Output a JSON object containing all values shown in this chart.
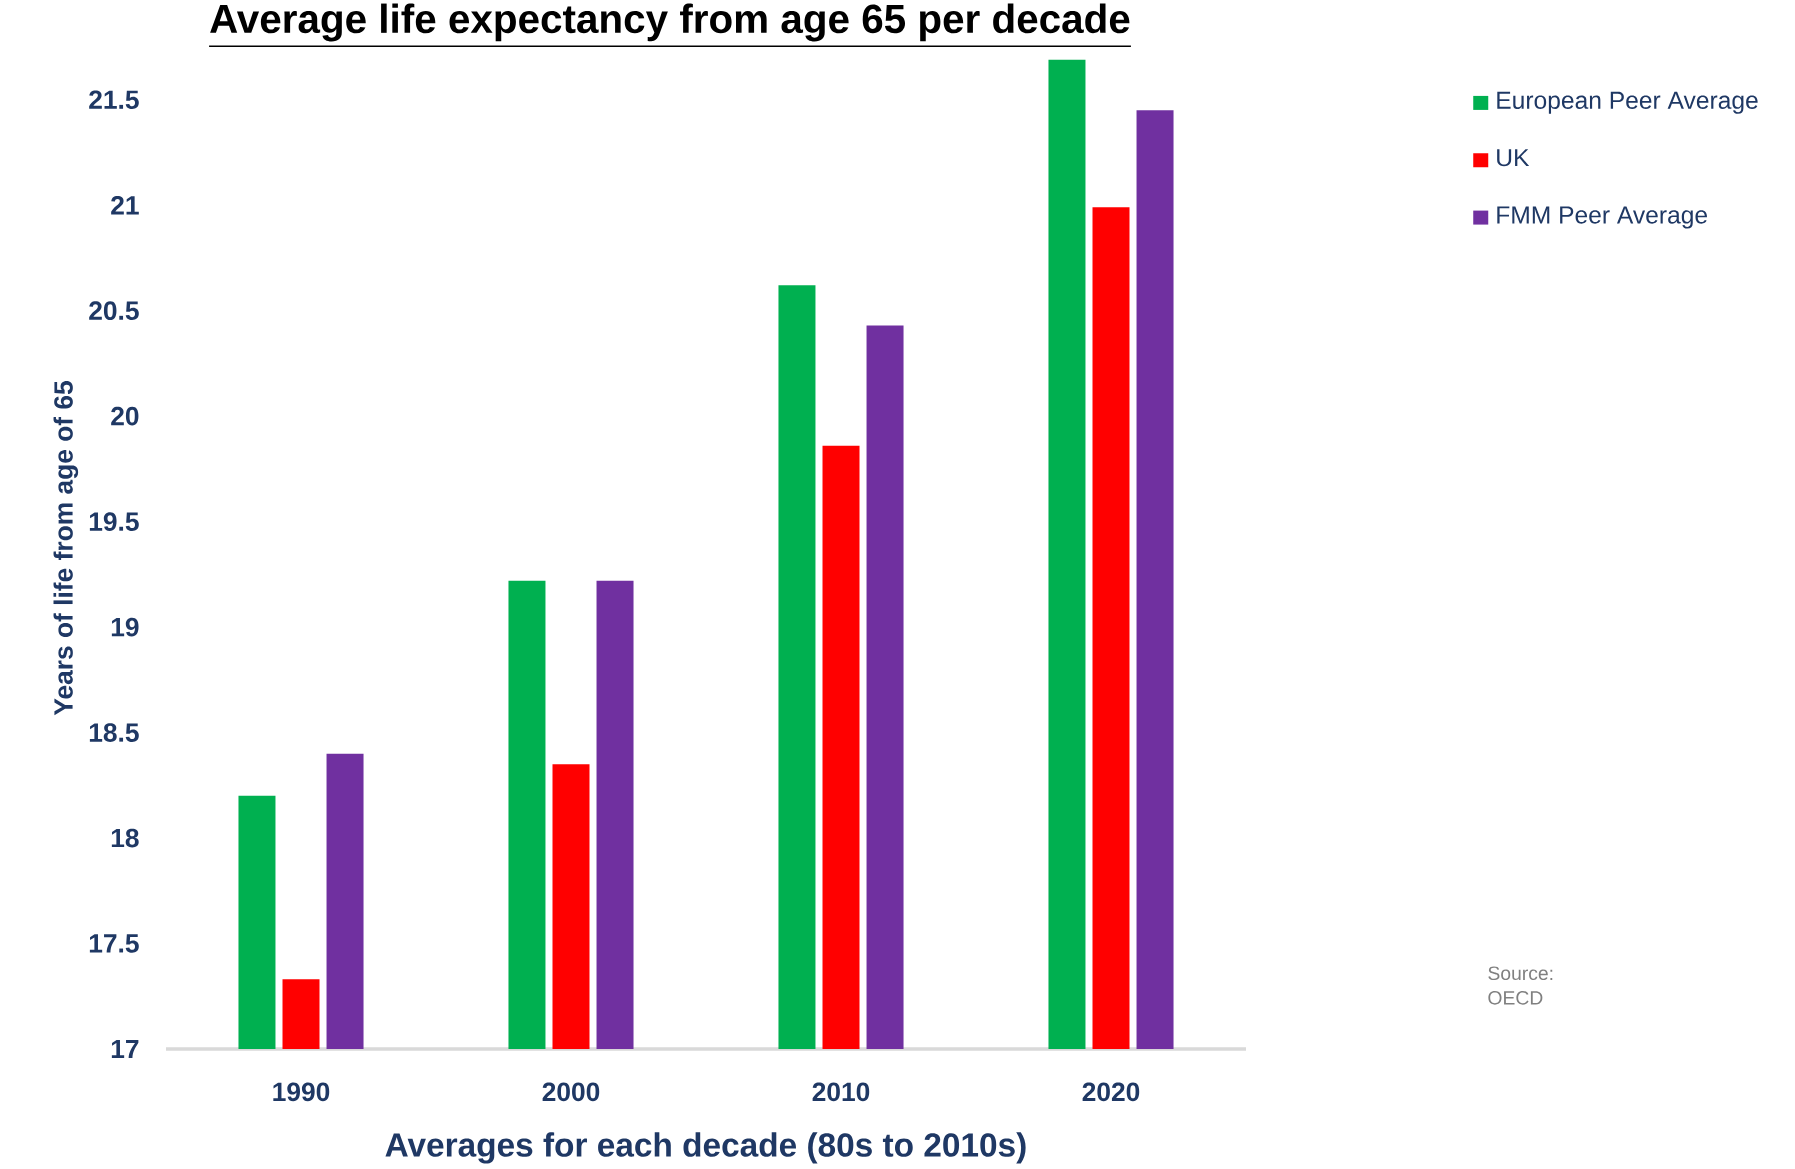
{
  "chart_data": {
    "type": "bar",
    "title": "Average life expectancy from age 65 per decade",
    "xlabel": "Averages for each decade (80s to 2010s)",
    "ylabel": "Years of  life from age of 65",
    "categories": [
      "1990",
      "2000",
      "2010",
      "2020"
    ],
    "series": [
      {
        "name": "European Peer Average",
        "color": "#00b050",
        "values": [
          18.2,
          19.22,
          20.62,
          21.69
        ]
      },
      {
        "name": "UK",
        "color": "#ff0000",
        "values": [
          17.33,
          18.35,
          19.86,
          20.99
        ]
      },
      {
        "name": "FMM Peer Average",
        "color": "#7030a0",
        "values": [
          18.4,
          19.22,
          20.43,
          21.45
        ]
      }
    ],
    "ylim": [
      17,
      21.75
    ],
    "yticks": [
      17,
      17.5,
      18,
      18.5,
      19,
      19.5,
      20,
      20.5,
      21,
      21.5
    ],
    "legend": "right",
    "annotations": [
      "Source: OECD"
    ]
  }
}
